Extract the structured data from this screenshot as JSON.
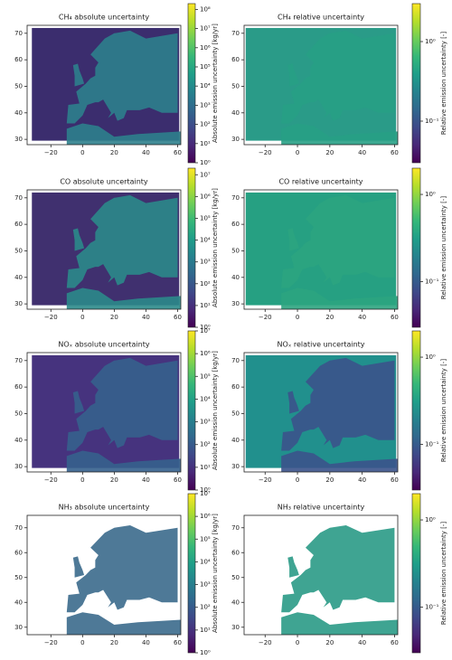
{
  "chart_data": [
    {
      "type": "map",
      "title": "CH₄ absolute uncertainty",
      "colorbar_label": "Absolute emission uncertainty [kg/yr]",
      "colormap": "viridis",
      "colorbar_scale": "log",
      "sea_color": "#3b2d6e",
      "land_color": "#2e7f8c",
      "xlim": [
        -35,
        62
      ],
      "ylim": [
        28,
        73
      ],
      "xticks": [
        {
          "value": -20,
          "label": "−20"
        },
        0,
        20,
        40,
        60
      ],
      "yticks": [
        30,
        40,
        50,
        60,
        70
      ],
      "clim": [
        1,
        200000000
      ],
      "cticks": [
        {
          "value": 1,
          "label": "10⁰"
        },
        {
          "value": 10,
          "label": "10¹"
        },
        {
          "value": 100,
          "label": "10²"
        },
        {
          "value": 1000,
          "label": "10³"
        },
        {
          "value": 10000,
          "label": "10⁴"
        },
        {
          "value": 100000,
          "label": "10⁵"
        },
        {
          "value": 1000000,
          "label": "10⁶"
        },
        {
          "value": 10000000,
          "label": "10⁷"
        },
        {
          "value": 100000000,
          "label": "10⁸"
        }
      ]
    },
    {
      "type": "map",
      "title": "CH₄ relative uncertainty",
      "colorbar_label": "Relative emission uncertainty [-]",
      "colormap": "viridis",
      "colorbar_scale": "log",
      "sea_color": "#2a9b88",
      "land_color": "#27a085",
      "xlim": [
        -33,
        62
      ],
      "ylim": [
        28,
        73
      ],
      "xticks": [
        {
          "value": -20,
          "label": "−20"
        },
        0,
        20,
        40,
        60
      ],
      "yticks": [
        30,
        40,
        50,
        60,
        70
      ],
      "clim": [
        0.03,
        3
      ],
      "cticks": [
        {
          "value": 0.1,
          "label": "10⁻¹"
        },
        {
          "value": 1,
          "label": "10⁰"
        }
      ]
    },
    {
      "type": "map",
      "title": "CO absolute uncertainty",
      "colorbar_label": "Absolute emission uncertainty [kg/yr]",
      "colormap": "viridis",
      "colorbar_scale": "log",
      "sea_color": "#40306f",
      "land_color": "#2b8a8a",
      "xlim": [
        -35,
        62
      ],
      "ylim": [
        28,
        73
      ],
      "xticks": [
        {
          "value": -20,
          "label": "−20"
        },
        0,
        20,
        40,
        60
      ],
      "yticks": [
        30,
        40,
        50,
        60,
        70
      ],
      "clim": [
        1,
        20000000
      ],
      "cticks": [
        {
          "value": 1,
          "label": "10⁰"
        },
        {
          "value": 10,
          "label": "10¹"
        },
        {
          "value": 100,
          "label": "10²"
        },
        {
          "value": 1000,
          "label": "10³"
        },
        {
          "value": 10000,
          "label": "10⁴"
        },
        {
          "value": 100000,
          "label": "10⁵"
        },
        {
          "value": 1000000,
          "label": "10⁶"
        },
        {
          "value": 10000000,
          "label": "10⁷"
        }
      ]
    },
    {
      "type": "map",
      "title": "CO relative uncertainty",
      "colorbar_label": "Relative emission uncertainty [-]",
      "colormap": "viridis",
      "colorbar_scale": "log",
      "sea_color": "#26a082",
      "land_color": "#2ca47f",
      "xlim": [
        -33,
        62
      ],
      "ylim": [
        28,
        73
      ],
      "xticks": [
        {
          "value": -20,
          "label": "−20"
        },
        0,
        20,
        40,
        60
      ],
      "yticks": [
        30,
        40,
        50,
        60,
        70
      ],
      "clim": [
        0.03,
        2
      ],
      "cticks": [
        {
          "value": 0.1,
          "label": "10⁻¹"
        },
        {
          "value": 1,
          "label": "10⁰"
        }
      ]
    },
    {
      "type": "map",
      "title": "NOₓ absolute uncertainty",
      "colorbar_label": "Absolute emission uncertainty [kg/yr]",
      "colormap": "viridis",
      "colorbar_scale": "log",
      "sea_color": "#46337e",
      "land_color": "#35608d",
      "xlim": [
        -35,
        62
      ],
      "ylim": [
        28,
        73
      ],
      "xticks": [
        {
          "value": -20,
          "label": "−20"
        },
        0,
        20,
        40,
        60
      ],
      "yticks": [
        30,
        40,
        50,
        60,
        70
      ],
      "clim": [
        1,
        10000000
      ],
      "cticks": [
        {
          "value": 1,
          "label": "10⁰"
        },
        {
          "value": 10,
          "label": "10¹"
        },
        {
          "value": 100,
          "label": "10²"
        },
        {
          "value": 1000,
          "label": "10³"
        },
        {
          "value": 10000,
          "label": "10⁴"
        },
        {
          "value": 100000,
          "label": "10⁵"
        },
        {
          "value": 1000000,
          "label": "10⁶"
        },
        {
          "value": 10000000,
          "label": "10⁷"
        }
      ]
    },
    {
      "type": "map",
      "title": "NOₓ relative uncertainty",
      "colorbar_label": "Relative emission uncertainty [-]",
      "colormap": "viridis",
      "colorbar_scale": "log",
      "sea_color": "#21908d",
      "land_color": "#3b538b",
      "xlim": [
        -33,
        62
      ],
      "ylim": [
        28,
        73
      ],
      "xticks": [
        {
          "value": -20,
          "label": "−20"
        },
        0,
        20,
        40,
        60
      ],
      "yticks": [
        30,
        40,
        50,
        60,
        70
      ],
      "clim": [
        0.03,
        2
      ],
      "cticks": [
        {
          "value": 0.1,
          "label": "10⁻¹"
        },
        {
          "value": 1,
          "label": "10⁰"
        }
      ]
    },
    {
      "type": "map",
      "title": "NH₃ absolute uncertainty",
      "colorbar_label": "Absolute emission uncertainty [kg/yr]",
      "colormap": "viridis",
      "colorbar_scale": "log",
      "sea_color": "#ffffff",
      "land_color": "#3b6a8c",
      "xlim": [
        -35,
        62
      ],
      "ylim": [
        27,
        75
      ],
      "xticks": [
        {
          "value": -20,
          "label": "−20"
        },
        0,
        20,
        40,
        60
      ],
      "yticks": [
        30,
        40,
        50,
        60,
        70
      ],
      "clim": [
        1,
        10000000
      ],
      "cticks": [
        {
          "value": 1,
          "label": "10⁰"
        },
        {
          "value": 10,
          "label": "10¹"
        },
        {
          "value": 100,
          "label": "10²"
        },
        {
          "value": 1000,
          "label": "10³"
        },
        {
          "value": 10000,
          "label": "10⁴"
        },
        {
          "value": 100000,
          "label": "10⁵"
        },
        {
          "value": 1000000,
          "label": "10⁶"
        },
        {
          "value": 10000000,
          "label": "10⁷"
        }
      ]
    },
    {
      "type": "map",
      "title": "NH₃ relative uncertainty",
      "colorbar_label": "Relative emission uncertainty [-]",
      "colormap": "viridis",
      "colorbar_scale": "log",
      "sea_color": "#ffffff",
      "land_color": "#2a9a86",
      "xlim": [
        -33,
        62
      ],
      "ylim": [
        27,
        75
      ],
      "xticks": [
        {
          "value": -20,
          "label": "−20"
        },
        0,
        20,
        40,
        60
      ],
      "yticks": [
        30,
        40,
        50,
        60,
        70
      ],
      "clim": [
        0.03,
        2
      ],
      "cticks": [
        {
          "value": 0.1,
          "label": "10⁻¹"
        },
        {
          "value": 1,
          "label": "10⁰"
        }
      ]
    }
  ]
}
